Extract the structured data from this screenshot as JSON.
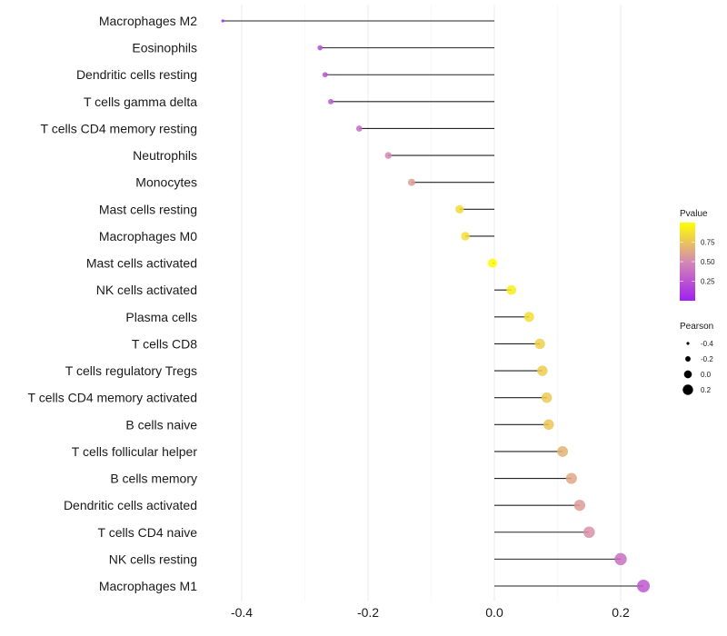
{
  "chart_data": {
    "type": "lollipop",
    "title": "",
    "xlabel": "",
    "ylabel": "",
    "xlim": [
      -0.44,
      0.245
    ],
    "x_ticks": [
      -0.4,
      -0.2,
      0.0,
      0.2
    ],
    "x_tick_labels": [
      "-0.4",
      "-0.2",
      "0.0",
      "0.2"
    ],
    "grid": true,
    "categories": [
      "Macrophages M2",
      "Eosinophils",
      "Dendritic cells resting",
      "T cells gamma delta",
      "T cells CD4 memory resting",
      "Neutrophils",
      "Monocytes",
      "Mast cells resting",
      "Macrophages M0",
      "Mast cells activated",
      "NK cells activated",
      "Plasma cells",
      "T cells CD8",
      "T cells regulatory  Tregs ",
      "T cells CD4 memory activated",
      "B cells naive",
      "T cells follicular helper",
      "B cells memory",
      "Dendritic cells activated",
      "T cells CD4 naive",
      "NK cells resting",
      "Macrophages M1"
    ],
    "pearson": [
      -0.43,
      -0.276,
      -0.268,
      -0.259,
      -0.214,
      -0.168,
      -0.131,
      -0.055,
      -0.046,
      -0.003,
      0.027,
      0.055,
      0.072,
      0.076,
      0.083,
      0.086,
      0.108,
      0.122,
      0.135,
      0.15,
      0.2,
      0.236
    ],
    "pvalue": [
      0.02,
      0.22,
      0.24,
      0.26,
      0.36,
      0.48,
      0.58,
      0.84,
      0.86,
      0.99,
      0.93,
      0.86,
      0.8,
      0.79,
      0.77,
      0.76,
      0.68,
      0.63,
      0.58,
      0.53,
      0.38,
      0.26
    ],
    "legend": {
      "placement": "right",
      "color": {
        "title": "Pvalue",
        "ticks": [
          0.25,
          0.5,
          0.75
        ],
        "tick_labels": [
          "0.25",
          "0.50",
          "0.75"
        ],
        "range": [
          0.0,
          1.0
        ],
        "low_color": "#a020f0",
        "mid_color": "#d589b4",
        "high_color": "#ffff00"
      },
      "size": {
        "title": "Pearson",
        "values": [
          -0.4,
          -0.2,
          0.0,
          0.2
        ],
        "labels": [
          "-0.4",
          "-0.2",
          "0.0",
          "0.2"
        ]
      }
    }
  }
}
